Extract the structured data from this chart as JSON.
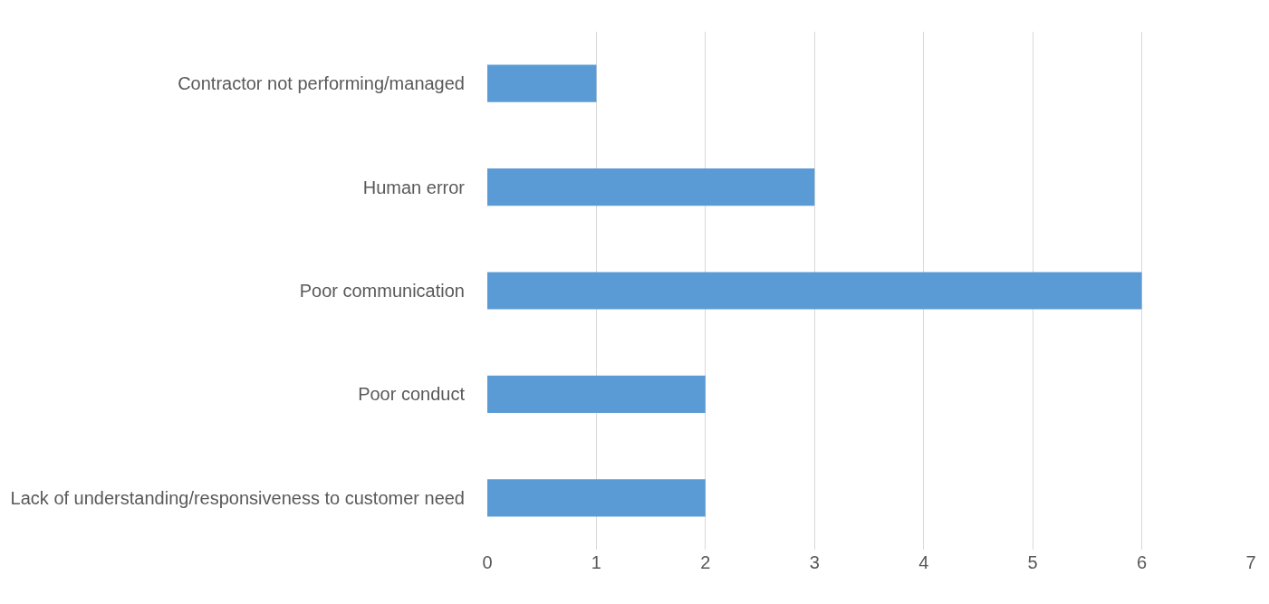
{
  "chart_data": {
    "type": "bar",
    "orientation": "horizontal",
    "categories": [
      "Contractor not performing/managed",
      "Human error",
      "Poor communication",
      "Poor conduct",
      "Lack of understanding/responsiveness to customer need"
    ],
    "values": [
      1,
      3,
      6,
      2,
      2
    ],
    "color": "#5b9bd5",
    "xlim": [
      0,
      7
    ],
    "xticks": [
      0,
      1,
      2,
      3,
      4,
      5,
      6,
      7
    ],
    "grid": "x"
  }
}
